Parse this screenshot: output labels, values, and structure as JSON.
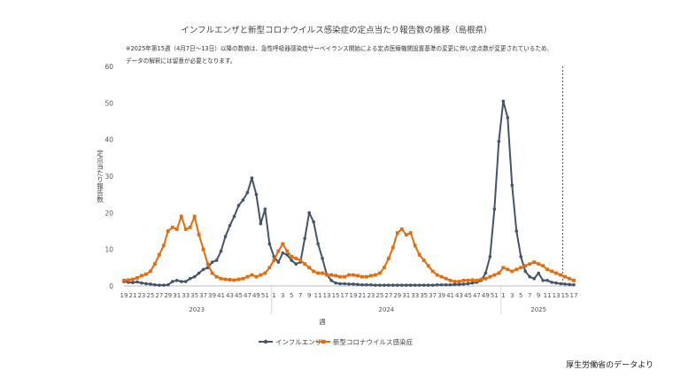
{
  "header": {
    "title": "インフルエンザと新型コロナウイルス感染症の定点当たり報告数の推移（島根県）",
    "note_line1": "※2025年第15週（4月7日～13日）以降の数値は、急性呼吸器感染症サーベイランス開始による定点医療機関設置基準の変更に伴い定点数が変更されているため、",
    "note_line2": "データの解釈には留意が必要となります。"
  },
  "footer": {
    "credit": "厚生労働省のデータより"
  },
  "chart_data": {
    "type": "line",
    "title": "インフルエンザと新型コロナウイルス感染症の定点当たり報告数の推移（島根県）",
    "xlabel": "週",
    "ylabel": "定点当たり報告数",
    "ylim": [
      0,
      60
    ],
    "yticks": [
      0,
      10,
      20,
      30,
      40,
      50,
      60
    ],
    "grid": false,
    "legend": "bottom-center",
    "x_tick_labels": [
      "19",
      "21",
      "23",
      "25",
      "27",
      "29",
      "31",
      "33",
      "35",
      "37",
      "39",
      "41",
      "43",
      "45",
      "47",
      "49",
      "51",
      "1",
      "3",
      "5",
      "7",
      "9",
      "11",
      "13",
      "15",
      "17",
      "19",
      "21",
      "23",
      "25",
      "27",
      "29",
      "31",
      "33",
      "35",
      "37",
      "39",
      "41",
      "43",
      "45",
      "47",
      "49",
      "51",
      "1",
      "3",
      "5",
      "7",
      "9",
      "11",
      "13",
      "15",
      "17"
    ],
    "year_labels": [
      "2023",
      "2024",
      "2025"
    ],
    "reference_line": "2025年第15週",
    "x": [
      "2023-W19",
      "2023-W20",
      "2023-W21",
      "2023-W22",
      "2023-W23",
      "2023-W24",
      "2023-W25",
      "2023-W26",
      "2023-W27",
      "2023-W28",
      "2023-W29",
      "2023-W30",
      "2023-W31",
      "2023-W32",
      "2023-W33",
      "2023-W34",
      "2023-W35",
      "2023-W36",
      "2023-W37",
      "2023-W38",
      "2023-W39",
      "2023-W40",
      "2023-W41",
      "2023-W42",
      "2023-W43",
      "2023-W44",
      "2023-W45",
      "2023-W46",
      "2023-W47",
      "2023-W48",
      "2023-W49",
      "2023-W50",
      "2023-W51",
      "2023-W52",
      "2024-W01",
      "2024-W02",
      "2024-W03",
      "2024-W04",
      "2024-W05",
      "2024-W06",
      "2024-W07",
      "2024-W08",
      "2024-W09",
      "2024-W10",
      "2024-W11",
      "2024-W12",
      "2024-W13",
      "2024-W14",
      "2024-W15",
      "2024-W16",
      "2024-W17",
      "2024-W18",
      "2024-W19",
      "2024-W20",
      "2024-W21",
      "2024-W22",
      "2024-W23",
      "2024-W24",
      "2024-W25",
      "2024-W26",
      "2024-W27",
      "2024-W28",
      "2024-W29",
      "2024-W30",
      "2024-W31",
      "2024-W32",
      "2024-W33",
      "2024-W34",
      "2024-W35",
      "2024-W36",
      "2024-W37",
      "2024-W38",
      "2024-W39",
      "2024-W40",
      "2024-W41",
      "2024-W42",
      "2024-W43",
      "2024-W44",
      "2024-W45",
      "2024-W46",
      "2024-W47",
      "2024-W48",
      "2024-W49",
      "2024-W50",
      "2024-W51",
      "2024-W52",
      "2025-W01",
      "2025-W02",
      "2025-W03",
      "2025-W04",
      "2025-W05",
      "2025-W06",
      "2025-W07",
      "2025-W08",
      "2025-W09",
      "2025-W10",
      "2025-W11",
      "2025-W12",
      "2025-W13",
      "2025-W14",
      "2025-W15",
      "2025-W16",
      "2025-W17"
    ],
    "series": [
      {
        "name": "インフルエンザ",
        "color": "#44546a",
        "values": [
          1.2,
          1.0,
          0.9,
          1.1,
          0.8,
          0.6,
          0.5,
          0.3,
          0.2,
          0.2,
          0.3,
          1.2,
          1.5,
          1.2,
          1.2,
          2.0,
          2.5,
          3.5,
          4.5,
          5.0,
          6.5,
          7.0,
          9.5,
          13.5,
          16.5,
          19.0,
          22.0,
          23.5,
          25.5,
          29.5,
          25.0,
          17.0,
          21.0,
          11.5,
          8.0,
          6.5,
          9.0,
          8.5,
          7.0,
          6.0,
          6.5,
          13.0,
          20.0,
          17.5,
          11.5,
          7.5,
          3.0,
          1.5,
          0.8,
          0.6,
          0.6,
          0.5,
          0.5,
          0.4,
          0.3,
          0.3,
          0.3,
          0.2,
          0.2,
          0.2,
          0.2,
          0.2,
          0.2,
          0.2,
          0.2,
          0.2,
          0.2,
          0.2,
          0.2,
          0.2,
          0.2,
          0.3,
          0.3,
          0.3,
          0.3,
          0.4,
          0.4,
          0.5,
          0.6,
          0.8,
          1.0,
          1.5,
          3.5,
          8.0,
          21.0,
          39.5,
          50.5,
          46.0,
          27.5,
          15.0,
          8.0,
          4.0,
          2.5,
          2.0,
          3.5,
          1.5,
          1.5,
          1.0,
          0.8,
          0.6,
          0.5,
          0.4,
          0.3
        ]
      },
      {
        "name": "新型コロナウイルス感染症",
        "color": "#e46c0a",
        "values": [
          1.5,
          1.6,
          1.8,
          2.2,
          2.8,
          3.2,
          4.0,
          6.0,
          8.5,
          11.0,
          15.0,
          16.0,
          15.5,
          19.0,
          15.5,
          16.0,
          19.0,
          14.0,
          10.0,
          6.0,
          3.5,
          2.5,
          2.0,
          1.8,
          1.7,
          1.6,
          1.8,
          2.0,
          2.5,
          3.0,
          2.5,
          3.0,
          3.5,
          5.0,
          7.0,
          9.5,
          11.5,
          9.5,
          8.0,
          7.5,
          7.0,
          6.0,
          5.0,
          4.0,
          3.5,
          3.5,
          3.0,
          3.0,
          2.8,
          2.5,
          2.5,
          3.0,
          3.0,
          2.8,
          2.5,
          2.5,
          2.8,
          3.0,
          3.5,
          5.0,
          7.5,
          10.5,
          14.5,
          15.5,
          14.0,
          14.5,
          11.0,
          8.5,
          7.0,
          5.5,
          4.0,
          3.0,
          2.5,
          2.0,
          1.5,
          1.2,
          1.2,
          1.5,
          1.5,
          1.6,
          1.5,
          1.8,
          2.0,
          2.5,
          3.0,
          3.5,
          5.0,
          4.5,
          4.0,
          4.5,
          5.0,
          5.5,
          6.0,
          6.5,
          6.0,
          5.5,
          4.5,
          4.0,
          3.5,
          3.0,
          2.5,
          2.0,
          1.5
        ]
      }
    ]
  }
}
